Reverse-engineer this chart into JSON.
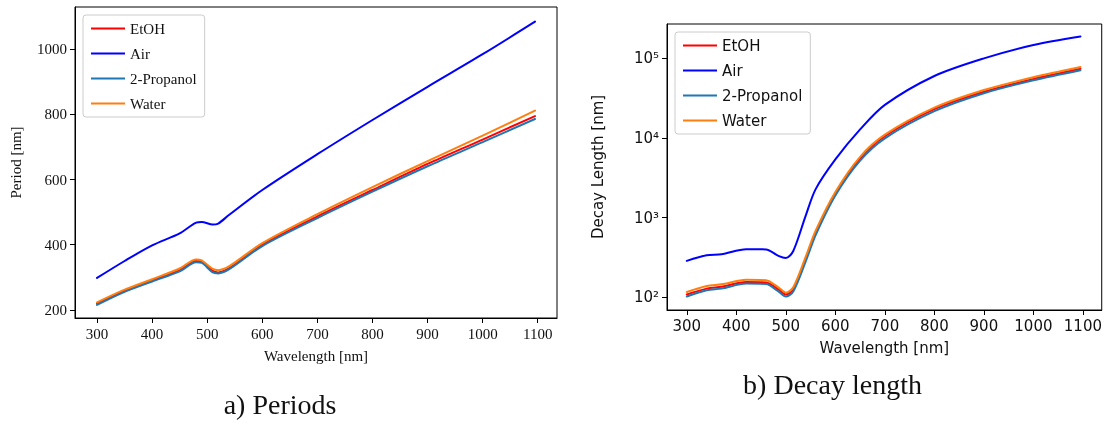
{
  "chart_data": [
    {
      "type": "line",
      "title": "a) Periods",
      "xlabel": "Wavelength [nm]",
      "ylabel": "Period [nm]",
      "x": [
        300,
        350,
        400,
        450,
        480,
        490,
        510,
        520,
        540,
        600,
        700,
        800,
        900,
        1000,
        1095
      ],
      "series": [
        {
          "name": "EtOH",
          "color": "#ff0000",
          "values": [
            219,
            258,
            290,
            322,
            350,
            348,
            320,
            315,
            328,
            400,
            487,
            568,
            648,
            723,
            795
          ]
        },
        {
          "name": "Air",
          "color": "#0000ff",
          "values": [
            298,
            350,
            398,
            435,
            468,
            470,
            462,
            465,
            492,
            568,
            678,
            783,
            885,
            985,
            1085
          ]
        },
        {
          "name": "2-Propanol",
          "color": "#1f77b4",
          "values": [
            215,
            255,
            287,
            318,
            346,
            344,
            315,
            312,
            325,
            396,
            482,
            563,
            641,
            715,
            786
          ]
        },
        {
          "name": "Water",
          "color": "#ff7f0e",
          "values": [
            223,
            262,
            294,
            327,
            355,
            352,
            326,
            322,
            334,
            405,
            494,
            577,
            657,
            735,
            812
          ]
        }
      ],
      "xlim": [
        260,
        1135
      ],
      "xticks": [
        300,
        400,
        500,
        600,
        700,
        800,
        900,
        1000,
        1100
      ],
      "ylim": [
        175,
        1130
      ],
      "yticks": [
        200,
        400,
        600,
        800,
        1000
      ],
      "grid": false,
      "legend": "top left",
      "line_style": "solid",
      "marker": "none"
    },
    {
      "type": "line",
      "title": "b) Decay length",
      "xlabel": "Wavelength [nm]",
      "ylabel": "Decay Length [nm]",
      "x": [
        300,
        340,
        370,
        420,
        460,
        485,
        500,
        515,
        540,
        560,
        600,
        650,
        700,
        800,
        900,
        1000,
        1095
      ],
      "series": [
        {
          "name": "EtOH",
          "color": "#ff0000",
          "values": [
            108,
            128,
            135,
            155,
            153,
            125,
            108,
            125,
            300,
            640,
            2000,
            5500,
            10500,
            23000,
            38000,
            55000,
            74000
          ]
        },
        {
          "name": "Air",
          "color": "#0000ff",
          "values": [
            286,
            336,
            345,
            400,
            398,
            330,
            310,
            380,
            1050,
            2260,
            5370,
            12800,
            26000,
            60000,
            100000,
            147000,
            188000
          ]
        },
        {
          "name": "2-Propanol",
          "color": "#1f77b4",
          "values": [
            102,
            122,
            128,
            148,
            146,
            118,
            102,
            118,
            280,
            600,
            1900,
            5200,
            9900,
            21700,
            36500,
            53000,
            71000
          ]
        },
        {
          "name": "Water",
          "color": "#ff7f0e",
          "values": [
            116,
            138,
            145,
            165,
            163,
            133,
            114,
            133,
            320,
            680,
            2100,
            5800,
            11000,
            24000,
            40000,
            58000,
            78000
          ]
        }
      ],
      "xlim": [
        260,
        1138
      ],
      "xticks": [
        300,
        400,
        500,
        600,
        700,
        800,
        900,
        1000,
        1100
      ],
      "ylim": [
        69,
        270000
      ],
      "yticks": [
        {
          "value": 100,
          "label": "10²"
        },
        {
          "value": 1000,
          "label": "10³"
        },
        {
          "value": 10000,
          "label": "10⁴"
        },
        {
          "value": 100000,
          "label": "10⁵"
        }
      ],
      "log": "y",
      "grid": false,
      "legend": "top left",
      "line_style": "solid",
      "marker": "none"
    }
  ]
}
